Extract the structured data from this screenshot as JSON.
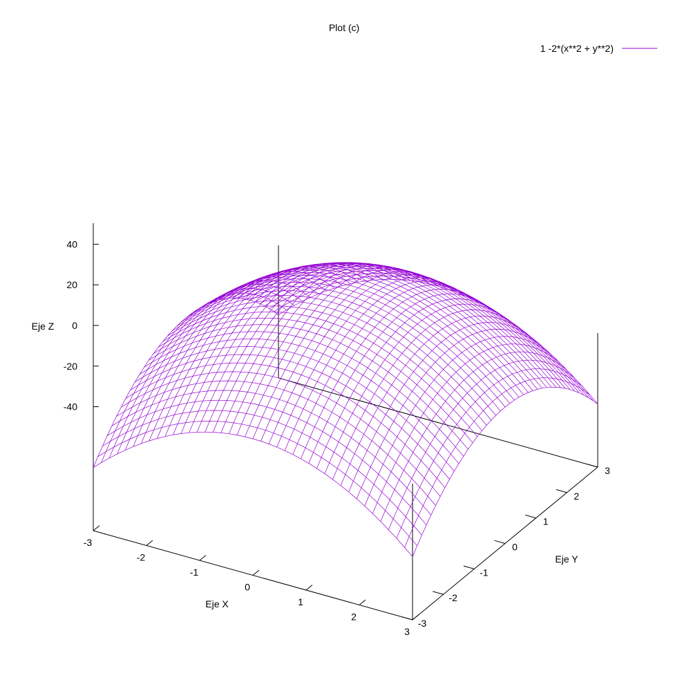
{
  "chart_data": {
    "type": "surface",
    "title": "Plot (c)",
    "xlabel": "Eje X",
    "ylabel": "Eje Y",
    "zlabel": "Eje Z",
    "xlim": [
      -3,
      3
    ],
    "ylim": [
      -3,
      3
    ],
    "zlim": [
      -40,
      40
    ],
    "xticks": [
      "-3",
      "-2",
      "-1",
      "0",
      "1",
      "2",
      "3"
    ],
    "yticks": [
      "-3",
      "-2",
      "-1",
      "0",
      "1",
      "2",
      "3"
    ],
    "zticks": [
      "40",
      "20",
      "0",
      "-20",
      "-40"
    ],
    "legend": {
      "position": "top-right",
      "entries": [
        {
          "label": "1 -2*(x**2 + y**2)",
          "color": "#9400d3"
        }
      ]
    },
    "series": [
      {
        "name": "1 -2*(x**2 + y**2)",
        "function": "1 - 2*(x^2 + y^2)",
        "samples": 40,
        "color": "#9400d3"
      }
    ],
    "grid": false
  }
}
